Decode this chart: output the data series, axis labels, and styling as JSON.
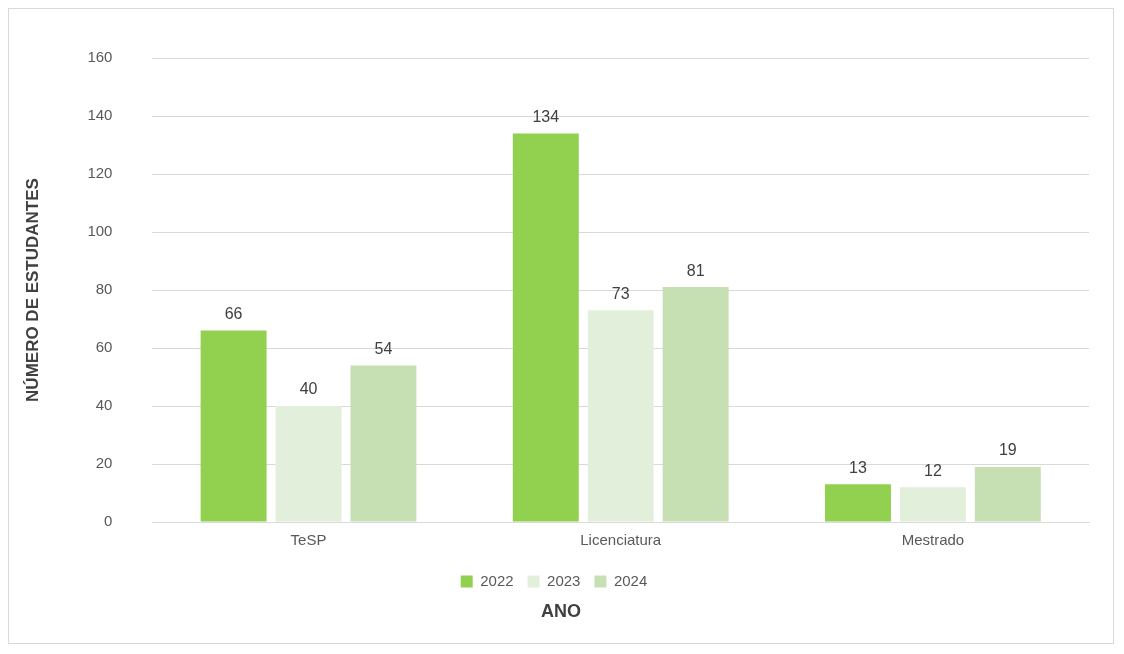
{
  "chart_data": {
    "type": "bar",
    "xlabel": "ANO",
    "ylabel": "NÚMERO DE ESTUDANTES",
    "categories": [
      "TeSP",
      "Licenciatura",
      "Mestrado"
    ],
    "series": [
      {
        "name": "2022",
        "color": "#92d050",
        "values": [
          66,
          134,
          13
        ]
      },
      {
        "name": "2023",
        "color": "#e2efda",
        "values": [
          40,
          73,
          12
        ]
      },
      {
        "name": "2024",
        "color": "#c6e0b4",
        "values": [
          54,
          81,
          19
        ]
      }
    ],
    "ylim": [
      0,
      160
    ],
    "yticks": [
      0,
      20,
      40,
      60,
      80,
      100,
      120,
      140,
      160
    ],
    "grid": "y",
    "legend": "bottom",
    "data_labels": true
  }
}
